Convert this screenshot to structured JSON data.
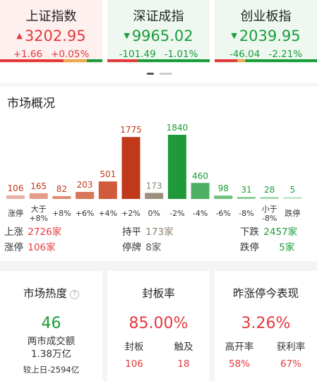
{
  "indices": [
    {
      "name": "上证指数",
      "value": "3202.95",
      "change": "+1.66",
      "pct": "+0.05%",
      "trend": "up",
      "color": "#e4393c",
      "bg": "#fdf0ee"
    },
    {
      "name": "深证成指",
      "value": "9965.02",
      "change": "-101.49",
      "pct": "-1.01%",
      "trend": "down",
      "color": "#1a9c3a",
      "bg": "#eef8f1"
    },
    {
      "name": "创业板指",
      "value": "2039.95",
      "change": "-46.04",
      "pct": "-2.21%",
      "trend": "down",
      "color": "#1a9c3a",
      "bg": "#eef8f1"
    }
  ],
  "overview": {
    "title": "市场概况",
    "stats": {
      "rise_label": "上涨",
      "rise_value": "2726家",
      "limit_up_label": "涨停",
      "limit_up_value": "106家",
      "flat_label": "持平",
      "flat_value": "173家",
      "suspended_label": "停牌",
      "suspended_value": "8家",
      "fall_label": "下跌",
      "fall_value": "2457家",
      "limit_down_label": "跌停",
      "limit_down_value": "5家"
    }
  },
  "chart_data": {
    "type": "bar",
    "categories": [
      "涨停",
      "大于\n+8%",
      "+8%",
      "+6%",
      "+4%",
      "+2%",
      "0%",
      "-2%",
      "-4%",
      "-6%",
      "-8%",
      "小于\n-8%",
      "跌停"
    ],
    "values": [
      106,
      165,
      82,
      203,
      501,
      1775,
      173,
      1840,
      460,
      98,
      31,
      28,
      5
    ],
    "colors": [
      "#e8b3a6",
      "#e39d88",
      "#dd8c72",
      "#d8765a",
      "#d05a3a",
      "#c0391a",
      "#9b8e7c",
      "#1e9a3a",
      "#4caf63",
      "#6fc07f",
      "#8ccf99",
      "#a9dbb3",
      "#c7e9cd"
    ],
    "label_colors": [
      "#c0391a",
      "#c0391a",
      "#c0391a",
      "#c0391a",
      "#c0391a",
      "#c0391a",
      "#8c8070",
      "#1a9c3a",
      "#1a9c3a",
      "#1a9c3a",
      "#1a9c3a",
      "#1a9c3a",
      "#1a9c3a"
    ],
    "title": "",
    "xlabel": "",
    "ylabel": ""
  },
  "cards": {
    "heat": {
      "title": "市场热度",
      "help": "?",
      "value": "46",
      "turnover_label": "两市成交额",
      "turnover_value": "1.38万亿",
      "compare": "较上日-2594亿"
    },
    "seal": {
      "title": "封板率",
      "value": "85.00%",
      "a_label": "封板",
      "a_value": "106",
      "b_label": "触及",
      "b_value": "18"
    },
    "yesterday": {
      "title": "昨涨停今表现",
      "value": "3.26%",
      "a_label": "高开率",
      "a_value": "58%",
      "b_label": "获利率",
      "b_value": "67%"
    }
  }
}
